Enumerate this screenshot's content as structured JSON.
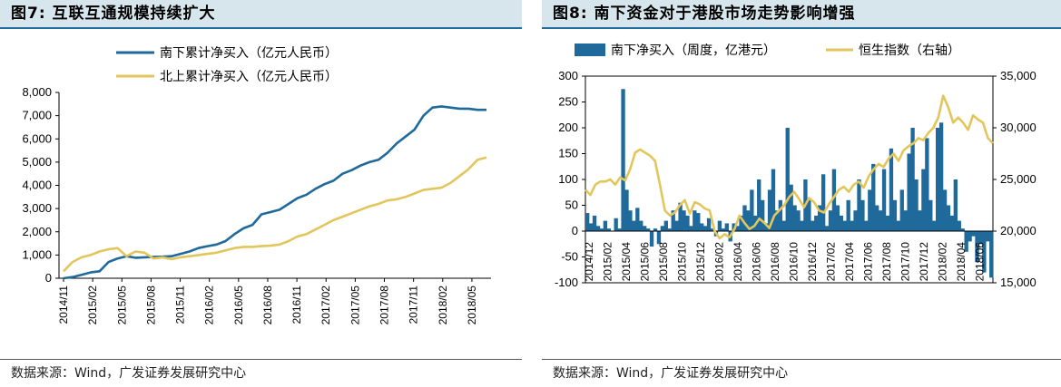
{
  "colors": {
    "blue": "#1f6a9b",
    "gold": "#e2c65c",
    "titleBg": "#d7e5ec",
    "titleLine": "#1d6e9e"
  },
  "left_panel": {
    "title": "图7:  互联互通规模持续扩大",
    "source": "数据来源：Wind，广发证券发展研究中心"
  },
  "right_panel": {
    "title": "图8:  南下资金对于港股市场走势影响增强",
    "source": "数据来源：Wind，广发证券发展研究中心"
  },
  "chart_data": [
    {
      "type": "line",
      "title": "图7:  互联互通规模持续扩大",
      "ylim": [
        0,
        8000
      ],
      "yticks": [
        "0",
        "1,000",
        "2,000",
        "3,000",
        "4,000",
        "5,000",
        "6,000",
        "7,000",
        "8,000"
      ],
      "xticks": [
        "2014/11",
        "2015/02",
        "2015/05",
        "2015/08",
        "2015/11",
        "2016/02",
        "2016/05",
        "2016/08",
        "2016/11",
        "2017/02",
        "2017/05",
        "2017/08",
        "2017/11",
        "2018/02",
        "2018/05"
      ],
      "series": [
        {
          "name": "南下累计净买入（亿元人民币）",
          "color": "#1f6a9b",
          "x": [
            0,
            1,
            2,
            3,
            4,
            5,
            6,
            7,
            8,
            9,
            10,
            11,
            12,
            13,
            14,
            15,
            16,
            17,
            18,
            19,
            20,
            21,
            22,
            23,
            24,
            25,
            26,
            27,
            28,
            29,
            30,
            31,
            32,
            33,
            34,
            35,
            36,
            37,
            38,
            39,
            40,
            41,
            42,
            43,
            44,
            45,
            46,
            47
          ],
          "values": [
            0,
            50,
            150,
            250,
            300,
            700,
            850,
            950,
            880,
            900,
            920,
            930,
            950,
            1050,
            1150,
            1300,
            1380,
            1450,
            1600,
            1900,
            2150,
            2300,
            2750,
            2850,
            2950,
            3200,
            3450,
            3600,
            3850,
            4050,
            4200,
            4500,
            4650,
            4850,
            5000,
            5100,
            5400,
            5800,
            6100,
            6400,
            7000,
            7350,
            7400,
            7350,
            7300,
            7300,
            7250,
            7250
          ]
        },
        {
          "name": "北上累计净买入（亿元人民币）",
          "color": "#e2c65c",
          "x": [
            0,
            1,
            2,
            3,
            4,
            5,
            6,
            7,
            8,
            9,
            10,
            11,
            12,
            13,
            14,
            15,
            16,
            17,
            18,
            19,
            20,
            21,
            22,
            23,
            24,
            25,
            26,
            27,
            28,
            29,
            30,
            31,
            32,
            33,
            34,
            35,
            36,
            37,
            38,
            39,
            40,
            41,
            42,
            43,
            44,
            45,
            46,
            47
          ],
          "values": [
            300,
            700,
            900,
            1000,
            1150,
            1250,
            1300,
            950,
            1150,
            1100,
            850,
            900,
            820,
            900,
            950,
            1000,
            1050,
            1100,
            1200,
            1300,
            1350,
            1350,
            1380,
            1400,
            1450,
            1600,
            1800,
            1900,
            2100,
            2300,
            2500,
            2650,
            2800,
            2950,
            3100,
            3200,
            3350,
            3400,
            3500,
            3650,
            3800,
            3850,
            3900,
            4100,
            4400,
            4700,
            5100,
            5200
          ]
        }
      ]
    },
    {
      "type": "bar+line",
      "title": "图8:  南下资金对于港股市场走势影响增强",
      "ylim_left": [
        -100,
        300
      ],
      "ylim_right": [
        15000,
        35000
      ],
      "yticks_left": [
        "300",
        "250",
        "200",
        "150",
        "100",
        "50",
        "0",
        "-50",
        "-100"
      ],
      "yticks_right": [
        "35,000",
        "30,000",
        "25,000",
        "20,000",
        "15,000"
      ],
      "xticks": [
        "2014/12",
        "2015/02",
        "2015/04",
        "2015/06",
        "2015/08",
        "2015/10",
        "2015/12",
        "2016/02",
        "2016/04",
        "2016/06",
        "2016/08",
        "2016/10",
        "2016/12",
        "2017/02",
        "2017/04",
        "2017/06",
        "2017/08",
        "2017/10",
        "2017/12",
        "2018/02",
        "2018/04",
        "2018/06"
      ],
      "series": [
        {
          "name": "南下净买入（周度，亿港元）",
          "type": "bar",
          "axis": "left",
          "color": "#1f6a9b",
          "values": [
            35,
            15,
            30,
            10,
            5,
            20,
            5,
            0,
            25,
            5,
            275,
            80,
            40,
            20,
            45,
            20,
            10,
            5,
            -30,
            5,
            -25,
            10,
            20,
            5,
            40,
            20,
            55,
            40,
            30,
            10,
            40,
            35,
            15,
            10,
            25,
            5,
            -10,
            20,
            5,
            15,
            -20,
            15,
            10,
            30,
            50,
            40,
            80,
            30,
            100,
            60,
            15,
            80,
            120,
            40,
            60,
            20,
            200,
            90,
            50,
            40,
            20,
            100,
            60,
            20,
            30,
            50,
            110,
            10,
            40,
            120,
            50,
            30,
            20,
            60,
            20,
            40,
            100,
            60,
            20,
            80,
            130,
            50,
            40,
            120,
            30,
            160,
            60,
            20,
            80,
            40,
            150,
            200,
            100,
            40,
            120,
            180,
            60,
            20,
            200,
            210,
            80,
            50,
            30,
            100,
            20,
            5,
            -40,
            -20,
            -10,
            -60,
            -25,
            -80,
            -20,
            -90
          ]
        },
        {
          "name": "恒生指数（右轴）",
          "type": "line",
          "axis": "right",
          "color": "#e2c65c",
          "values": [
            24000,
            23500,
            24500,
            24800,
            24800,
            25000,
            24500,
            25200,
            24900,
            26000,
            27600,
            27900,
            27600,
            27300,
            26800,
            24500,
            22000,
            21500,
            21800,
            22500,
            23000,
            21700,
            22800,
            22600,
            22200,
            22000,
            20000,
            19300,
            19700,
            19400,
            20200,
            21500,
            20800,
            20200,
            20500,
            21200,
            20800,
            20300,
            21500,
            22000,
            22500,
            23300,
            23800,
            23100,
            22300,
            23200,
            22800,
            22000,
            21800,
            22600,
            23300,
            24000,
            24300,
            23800,
            24500,
            24800,
            24200,
            25300,
            26000,
            26500,
            26200,
            27000,
            27500,
            26800,
            27800,
            28200,
            28500,
            29000,
            28800,
            29500,
            30000,
            31000,
            33100,
            32000,
            30500,
            31000,
            30500,
            29800,
            31200,
            30800,
            30500,
            29000,
            28500
          ]
        }
      ]
    }
  ]
}
